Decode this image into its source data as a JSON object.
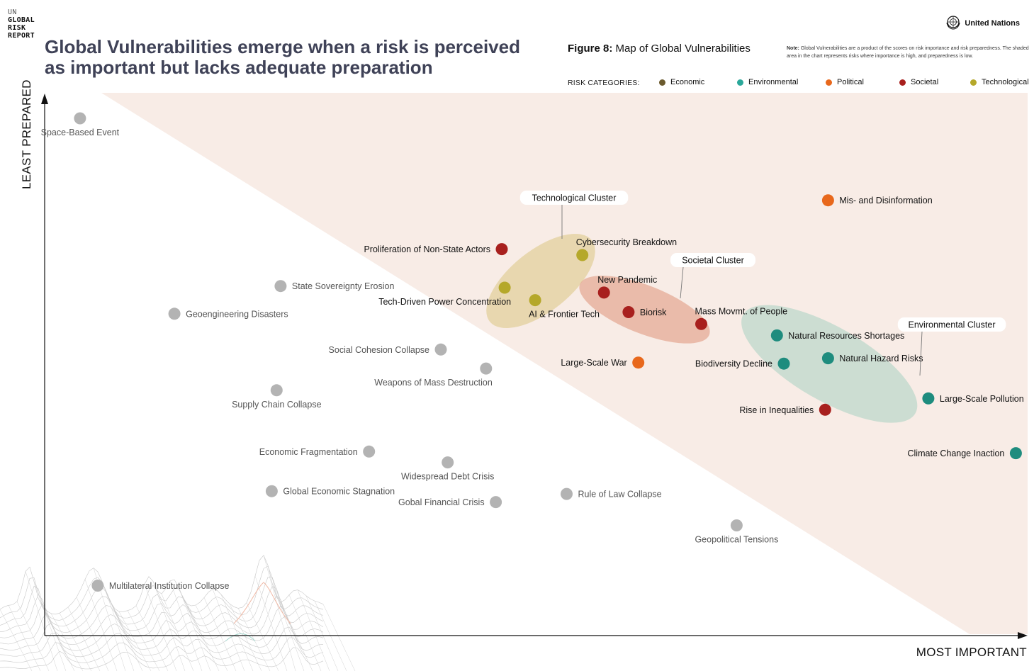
{
  "logo": {
    "line1": "UN",
    "line2": "GLOBAL",
    "line3": "RISK",
    "line4": "REPORT"
  },
  "headline": "Global Vulnerabilities emerge when a risk is perceived as important but lacks adequate preparation",
  "brand": {
    "name": "United Nations",
    "icon": "un-emblem-icon"
  },
  "figure": {
    "prefix": "Figure 8:",
    "title": "Map of Global Vulnerabilities"
  },
  "note": {
    "label": "Note:",
    "text": "Global Vulnerabilities are a product of the scores on risk importance and risk preparedness. The shaded area in the chart represents risks where importance is high, and preparedness is low."
  },
  "legend": {
    "title": "RISK CATEGORIES:",
    "items": [
      {
        "label": "Economic",
        "color": "#6b5a2e"
      },
      {
        "label": "Environmental",
        "color": "#2aa89a"
      },
      {
        "label": "Political",
        "color": "#e8681c"
      },
      {
        "label": "Societal",
        "color": "#a8201e"
      },
      {
        "label": "Technological",
        "color": "#b5a82a"
      }
    ]
  },
  "axes": {
    "y_title": "LEAST PREPARED",
    "x_title": "MOST IMPORTANT"
  },
  "chart_data": {
    "type": "scatter",
    "title": "Map of Global Vulnerabilities",
    "xlabel": "MOST IMPORTANT",
    "ylabel": "LEAST PREPARED",
    "xlim": [
      0,
      100
    ],
    "ylim": [
      0,
      100
    ],
    "shaded_region": "importance high and preparedness low",
    "colors": {
      "Economic": "#6b5a2e",
      "Environmental": "#1e8c7e",
      "Political": "#e8681c",
      "Societal": "#a8201e",
      "Technological": "#b5a82a",
      "Not highlighted": "#b3b3b3"
    },
    "points": [
      {
        "label": "Space-Based Event",
        "x": 3.6,
        "y": 95.3,
        "category": "Not highlighted"
      },
      {
        "label": "Mis- and Disinformation",
        "x": 79.7,
        "y": 80.2,
        "category": "Political"
      },
      {
        "label": "Proliferation of Non-State Actors",
        "x": 46.5,
        "y": 71.2,
        "category": "Societal"
      },
      {
        "label": "Cybersecurity Breakdown",
        "x": 54.7,
        "y": 70.1,
        "category": "Technological"
      },
      {
        "label": "State Sovereignty Erosion",
        "x": 24.0,
        "y": 64.4,
        "category": "Not highlighted"
      },
      {
        "label": "New Pandemic",
        "x": 56.9,
        "y": 63.2,
        "category": "Societal"
      },
      {
        "label": "Tech-Driven Power Concentration",
        "x": 46.8,
        "y": 64.1,
        "category": "Technological"
      },
      {
        "label": "AI & Frontier Tech",
        "x": 49.9,
        "y": 61.8,
        "category": "Technological"
      },
      {
        "label": "Geoengineering Disasters",
        "x": 13.2,
        "y": 59.3,
        "category": "Not highlighted"
      },
      {
        "label": "Biorisk",
        "x": 59.4,
        "y": 59.6,
        "category": "Societal"
      },
      {
        "label": "Mass Movmt. of People",
        "x": 66.8,
        "y": 57.4,
        "category": "Societal"
      },
      {
        "label": "Natural Resources Shortages",
        "x": 74.5,
        "y": 55.3,
        "category": "Environmental"
      },
      {
        "label": "Social Cohesion Collapse",
        "x": 40.3,
        "y": 52.7,
        "category": "Not highlighted"
      },
      {
        "label": "Natural Hazard Risks",
        "x": 79.7,
        "y": 51.1,
        "category": "Environmental"
      },
      {
        "label": "Large-Scale War",
        "x": 60.4,
        "y": 50.3,
        "category": "Political"
      },
      {
        "label": "Biodiversity Decline",
        "x": 75.2,
        "y": 50.1,
        "category": "Environmental"
      },
      {
        "label": "Weapons of Mass Destruction",
        "x": 44.9,
        "y": 49.2,
        "category": "Not highlighted"
      },
      {
        "label": "Supply Chain Collapse",
        "x": 23.6,
        "y": 45.2,
        "category": "Not highlighted"
      },
      {
        "label": "Large-Scale Pollution",
        "x": 89.9,
        "y": 43.7,
        "category": "Environmental"
      },
      {
        "label": "Rise in Inequalities",
        "x": 79.4,
        "y": 41.6,
        "category": "Societal"
      },
      {
        "label": "Climate Change Inaction",
        "x": 98.8,
        "y": 33.6,
        "category": "Environmental"
      },
      {
        "label": "Economic Fragmentation",
        "x": 33.0,
        "y": 33.9,
        "category": "Not highlighted"
      },
      {
        "label": "Widespread Debt Crisis",
        "x": 41.0,
        "y": 31.9,
        "category": "Not highlighted"
      },
      {
        "label": "Global Economic Stagnation",
        "x": 23.1,
        "y": 26.6,
        "category": "Not highlighted"
      },
      {
        "label": "Rule of Law Collapse",
        "x": 53.1,
        "y": 26.1,
        "category": "Not highlighted"
      },
      {
        "label": "Gobal Financial Crisis",
        "x": 45.9,
        "y": 24.6,
        "category": "Not highlighted"
      },
      {
        "label": "Geopolitical Tensions",
        "x": 70.4,
        "y": 20.3,
        "category": "Not highlighted"
      },
      {
        "label": "Multilateral Institution Collapse",
        "x": 5.4,
        "y": 9.2,
        "category": "Not highlighted"
      }
    ],
    "clusters": [
      {
        "label": "Technological Cluster",
        "members": [
          "Cybersecurity Breakdown",
          "Tech-Driven Power Concentration",
          "AI & Frontier Tech"
        ]
      },
      {
        "label": "Societal Cluster",
        "members": [
          "New Pandemic",
          "Biorisk",
          "Mass Movmt. of People"
        ]
      },
      {
        "label": "Environmental Cluster",
        "members": [
          "Natural Resources Shortages",
          "Biodiversity Decline",
          "Natural Hazard Risks",
          "Large-Scale Pollution"
        ]
      }
    ]
  }
}
